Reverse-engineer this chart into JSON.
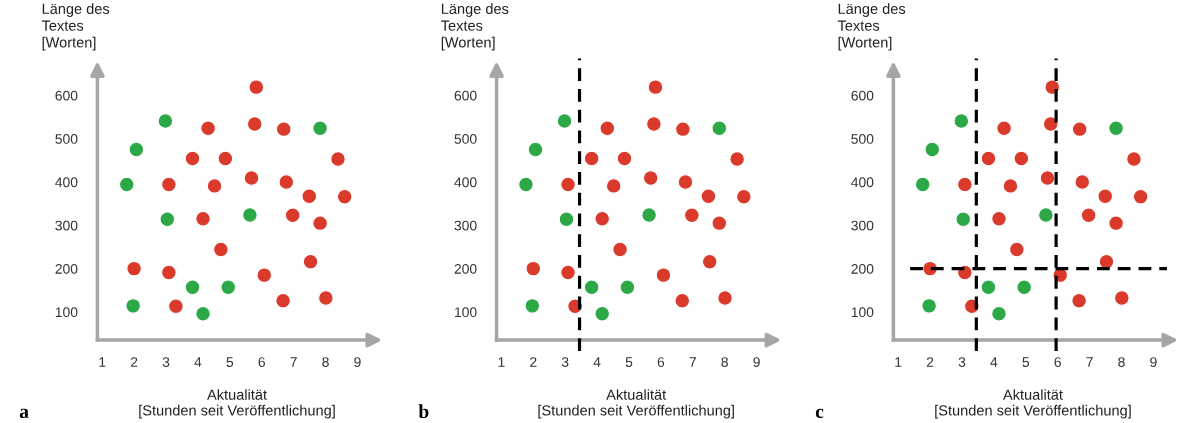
{
  "chart_data": [
    {
      "type": "scatter",
      "ylabel": "Länge des\nTextes\n[Worten]",
      "xlabel": "Aktualität\n[Stunden seit Veröffentlichung]",
      "annotations": [
        "a"
      ],
      "xlim": [
        0.85,
        9.6
      ],
      "ylim": [
        35,
        660
      ],
      "xticks": [
        1,
        2,
        3,
        4,
        5,
        6,
        7,
        8,
        9
      ],
      "yticks": [
        100,
        200,
        300,
        400,
        500,
        600
      ],
      "grid": false,
      "marker": "circle",
      "series": [
        {
          "color": "#2ca847",
          "x": [
            2.98,
            2.07,
            1.77,
            3.04,
            5.63,
            7.83,
            3.83,
            4.95,
            1.97,
            4.16
          ],
          "values": [
            541,
            475,
            394,
            314,
            324,
            524,
            157,
            157,
            114,
            96
          ]
        },
        {
          "color": "#d93a2b",
          "x": [
            5.83,
            4.32,
            5.78,
            6.69,
            3.83,
            4.86,
            8.39,
            3.09,
            4.52,
            5.68,
            6.77,
            7.49,
            8.6,
            4.16,
            6.97,
            7.83,
            4.72,
            7.53,
            2.0,
            3.09,
            6.08,
            3.31,
            6.67,
            8.01
          ],
          "values": [
            619,
            524,
            534,
            522,
            454,
            454,
            453,
            394,
            391,
            409,
            400,
            367,
            366,
            315,
            323,
            305,
            244,
            216,
            200,
            191,
            185,
            113,
            126,
            132
          ]
        }
      ]
    },
    {
      "type": "scatter",
      "ylabel": "Länge des\nTextes\n[Worten]",
      "xlabel": "Aktualität\n[Stunden seit Veröffentlichung]",
      "annotations": [
        "b"
      ],
      "xlim": [
        0.85,
        9.6
      ],
      "ylim": [
        35,
        660
      ],
      "xticks": [
        1,
        2,
        3,
        4,
        5,
        6,
        7,
        8,
        9
      ],
      "yticks": [
        100,
        200,
        300,
        400,
        500,
        600
      ],
      "grid": false,
      "marker": "circle",
      "ref_lines": [
        {
          "axis": "x",
          "value": 3.45,
          "color": "#000000",
          "line_style": "dashed"
        }
      ],
      "series": [
        {
          "color": "#2ca847",
          "x": [
            2.98,
            2.07,
            1.77,
            3.04,
            5.63,
            7.83,
            3.83,
            4.95,
            1.97,
            4.16
          ],
          "values": [
            541,
            475,
            394,
            314,
            324,
            524,
            157,
            157,
            114,
            96
          ]
        },
        {
          "color": "#d93a2b",
          "x": [
            5.83,
            4.32,
            5.78,
            6.69,
            3.83,
            4.86,
            8.39,
            3.09,
            4.52,
            5.68,
            6.77,
            7.49,
            8.6,
            4.16,
            6.97,
            7.83,
            4.72,
            7.53,
            2.0,
            3.09,
            6.08,
            3.31,
            6.67,
            8.01
          ],
          "values": [
            619,
            524,
            534,
            522,
            454,
            454,
            453,
            394,
            391,
            409,
            400,
            367,
            366,
            315,
            323,
            305,
            244,
            216,
            200,
            191,
            185,
            113,
            126,
            132
          ]
        }
      ]
    },
    {
      "type": "scatter",
      "ylabel": "Länge des\nTextes\n[Worten]",
      "xlabel": "Aktualität\n[Stunden seit Veröffentlichung]",
      "annotations": [
        "c"
      ],
      "xlim": [
        0.85,
        9.6
      ],
      "ylim": [
        35,
        660
      ],
      "xticks": [
        1,
        2,
        3,
        4,
        5,
        6,
        7,
        8,
        9
      ],
      "yticks": [
        100,
        200,
        300,
        400,
        500,
        600
      ],
      "grid": false,
      "marker": "circle",
      "ref_lines": [
        {
          "axis": "x",
          "value": 3.45,
          "color": "#000000",
          "line_style": "dashed"
        },
        {
          "axis": "x",
          "value": 5.95,
          "color": "#000000",
          "line_style": "dashed"
        },
        {
          "axis": "y",
          "value": 200,
          "color": "#000000",
          "line_style": "dashed"
        }
      ],
      "series": [
        {
          "color": "#2ca847",
          "x": [
            2.98,
            2.07,
            1.77,
            3.04,
            5.63,
            7.83,
            3.83,
            4.95,
            1.97,
            4.16
          ],
          "values": [
            541,
            475,
            394,
            314,
            324,
            524,
            157,
            157,
            114,
            96
          ]
        },
        {
          "color": "#d93a2b",
          "x": [
            5.83,
            4.32,
            5.78,
            6.69,
            3.83,
            4.86,
            8.39,
            3.09,
            4.52,
            5.68,
            6.77,
            7.49,
            8.6,
            4.16,
            6.97,
            7.83,
            4.72,
            7.53,
            2.0,
            3.09,
            6.08,
            3.31,
            6.67,
            8.01
          ],
          "values": [
            619,
            524,
            534,
            522,
            454,
            454,
            453,
            394,
            391,
            409,
            400,
            367,
            366,
            315,
            323,
            305,
            244,
            216,
            200,
            191,
            185,
            113,
            126,
            132
          ]
        }
      ]
    }
  ]
}
